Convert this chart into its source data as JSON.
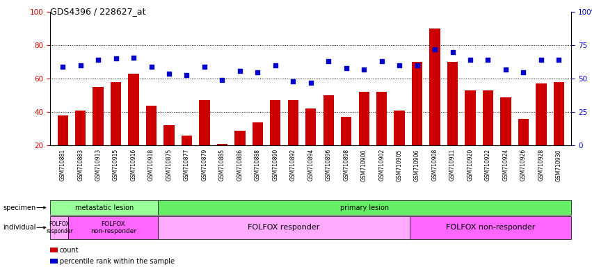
{
  "title": "GDS4396 / 228627_at",
  "samples": [
    "GSM710881",
    "GSM710883",
    "GSM710913",
    "GSM710915",
    "GSM710916",
    "GSM710918",
    "GSM710875",
    "GSM710877",
    "GSM710879",
    "GSM710885",
    "GSM710886",
    "GSM710888",
    "GSM710890",
    "GSM710892",
    "GSM710894",
    "GSM710896",
    "GSM710898",
    "GSM710900",
    "GSM710902",
    "GSM710905",
    "GSM710906",
    "GSM710908",
    "GSM710911",
    "GSM710920",
    "GSM710922",
    "GSM710924",
    "GSM710926",
    "GSM710928",
    "GSM710930"
  ],
  "count_values": [
    38,
    41,
    55,
    58,
    63,
    44,
    32,
    26,
    47,
    21,
    29,
    34,
    47,
    47,
    42,
    50,
    37,
    52,
    52,
    41,
    70,
    90,
    70,
    53,
    53,
    49,
    36,
    57,
    58
  ],
  "percentile_values": [
    59,
    60,
    64,
    65,
    66,
    59,
    54,
    53,
    59,
    49,
    56,
    55,
    60,
    48,
    47,
    63,
    58,
    57,
    63,
    60,
    60,
    72,
    70,
    64,
    64,
    57,
    55,
    64,
    64
  ],
  "bar_color": "#cc0000",
  "dot_color": "#0000cc",
  "ylim_left": [
    20,
    100
  ],
  "ylim_right": [
    0,
    100
  ],
  "yticks_left": [
    20,
    40,
    60,
    80,
    100
  ],
  "yticks_right": [
    0,
    25,
    50,
    75,
    100
  ],
  "ytick_labels_right": [
    "0",
    "25",
    "50",
    "75",
    "100%"
  ],
  "grid_values": [
    40,
    60,
    80
  ],
  "specimen_segments": [
    {
      "text": "metastatic lesion",
      "start": 0,
      "end": 5,
      "color": "#99ff99"
    },
    {
      "text": "primary lesion",
      "start": 6,
      "end": 28,
      "color": "#66ee66"
    }
  ],
  "individual_segments": [
    {
      "text": "FOLFOX\nresponder",
      "start": 0,
      "end": 0,
      "color": "#ffaaff",
      "fontsize": 5.5
    },
    {
      "text": "FOLFOX\nnon-responder",
      "start": 1,
      "end": 5,
      "color": "#ff66ff",
      "fontsize": 6.5
    },
    {
      "text": "FOLFOX responder",
      "start": 6,
      "end": 19,
      "color": "#ffaaff",
      "fontsize": 8
    },
    {
      "text": "FOLFOX non-responder",
      "start": 20,
      "end": 28,
      "color": "#ff66ff",
      "fontsize": 8
    }
  ],
  "bar_bottom": 20,
  "background_color": "#ffffff"
}
